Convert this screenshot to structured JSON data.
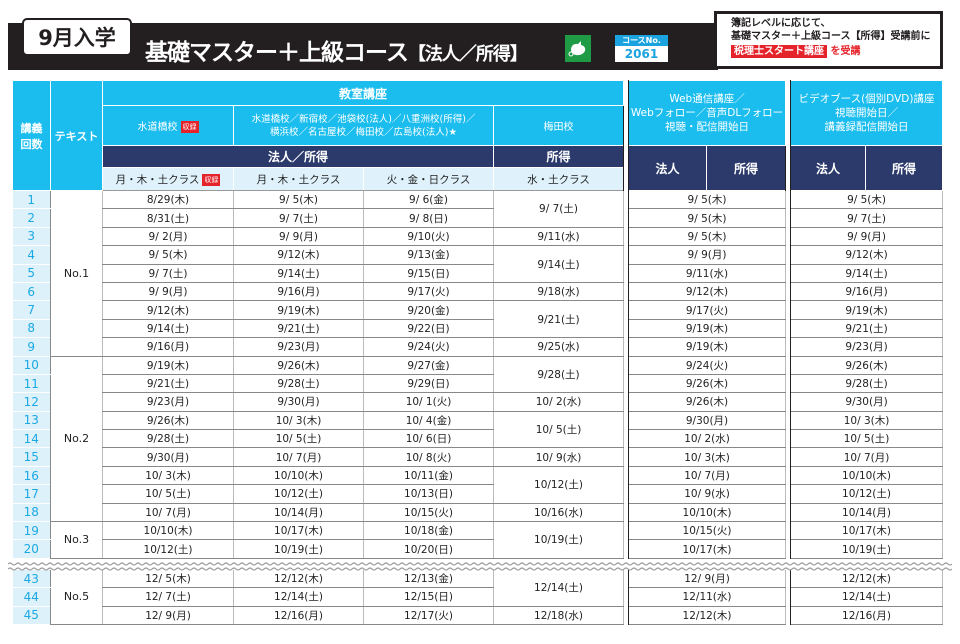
{
  "header": {
    "entry_label": "9月入学",
    "title": "基礎マスター＋上級コース",
    "title_sub": "【法人／所得】",
    "icon": "green-bird-icon",
    "course_no_label": "コースNo.",
    "course_no": "2061",
    "note_line1": "簿記レベルに応じて、",
    "note_line2": "基礎マスター＋上級コース【所得】受講前に",
    "note_highlight": "税理士スタート講座",
    "note_suffix": "を受講"
  },
  "colors": {
    "cyan": "#1bbdee",
    "navy": "#2b3a6b",
    "light": "#dff2fb",
    "red": "#e5232b"
  },
  "table": {
    "col_lecture_no": "講義\n回数",
    "col_text": "テキスト",
    "classroom": "教室講座",
    "school_1": "水道橋校",
    "school_1_badge": "収録",
    "school_2": "水道橋校／新宿校／池袋校(法人)／八重洲校(所得)／\n横浜校／名古屋校／梅田校／広島校(法人)★",
    "school_3": "梅田校",
    "subject_main": "法人／所得",
    "subject_umeda": "所得",
    "class_1": "月・木・土クラス",
    "class_1_badge": "収録",
    "class_2": "月・木・土クラス",
    "class_3": "火・金・日クラス",
    "class_4": "水・土クラス",
    "web_header": "Web通信講座／\nWebフォロー／音声DLフォロー\n視聴・配信開始日",
    "video_header": "ビデオブース(個別DVD)講座\n視聴開始日／\n講義録配信開始日",
    "web_corp": "法人",
    "web_income": "所得",
    "video_corp": "法人",
    "video_income": "所得"
  },
  "text_groups": [
    {
      "label": "No.1",
      "rows": 9
    },
    {
      "label": "No.2",
      "rows": 9
    },
    {
      "label": "No.3",
      "rows": 2
    },
    {
      "label": "No.5",
      "rows": 3
    }
  ],
  "rows": [
    {
      "n": "1",
      "c1": "8/29(木)",
      "c2": "9/ 5(木)",
      "c3": "9/ 6(金)",
      "c4": "9/ 7(土)",
      "c4_span": 2,
      "web": "9/ 5(木)",
      "video": "9/ 5(木)"
    },
    {
      "n": "2",
      "c1": "8/31(土)",
      "c2": "9/ 7(土)",
      "c3": "9/ 8(日)",
      "web": "9/ 5(木)",
      "video": "9/ 7(土)"
    },
    {
      "n": "3",
      "c1": "9/ 2(月)",
      "c2": "9/ 9(月)",
      "c3": "9/10(火)",
      "c4": "9/11(水)",
      "c4_span": 1,
      "web": "9/ 5(木)",
      "video": "9/ 9(月)"
    },
    {
      "n": "4",
      "c1": "9/ 5(木)",
      "c2": "9/12(木)",
      "c3": "9/13(金)",
      "c4": "9/14(土)",
      "c4_span": 2,
      "web": "9/ 9(月)",
      "video": "9/12(木)"
    },
    {
      "n": "5",
      "c1": "9/ 7(土)",
      "c2": "9/14(土)",
      "c3": "9/15(日)",
      "web": "9/11(水)",
      "video": "9/14(土)"
    },
    {
      "n": "6",
      "c1": "9/ 9(月)",
      "c2": "9/16(月)",
      "c3": "9/17(火)",
      "c4": "9/18(水)",
      "c4_span": 1,
      "web": "9/12(木)",
      "video": "9/16(月)"
    },
    {
      "n": "7",
      "c1": "9/12(木)",
      "c2": "9/19(木)",
      "c3": "9/20(金)",
      "c4": "9/21(土)",
      "c4_span": 2,
      "web": "9/17(火)",
      "video": "9/19(木)"
    },
    {
      "n": "8",
      "c1": "9/14(土)",
      "c2": "9/21(土)",
      "c3": "9/22(日)",
      "web": "9/19(木)",
      "video": "9/21(土)"
    },
    {
      "n": "9",
      "c1": "9/16(月)",
      "c2": "9/23(月)",
      "c3": "9/24(火)",
      "c4": "9/25(水)",
      "c4_span": 1,
      "web": "9/19(木)",
      "video": "9/23(月)"
    },
    {
      "n": "10",
      "c1": "9/19(木)",
      "c2": "9/26(木)",
      "c3": "9/27(金)",
      "c4": "9/28(土)",
      "c4_span": 2,
      "web": "9/24(火)",
      "video": "9/26(木)"
    },
    {
      "n": "11",
      "c1": "9/21(土)",
      "c2": "9/28(土)",
      "c3": "9/29(日)",
      "web": "9/26(木)",
      "video": "9/28(土)"
    },
    {
      "n": "12",
      "c1": "9/23(月)",
      "c2": "9/30(月)",
      "c3": "10/ 1(火)",
      "c4": "10/ 2(水)",
      "c4_span": 1,
      "web": "9/26(木)",
      "video": "9/30(月)"
    },
    {
      "n": "13",
      "c1": "9/26(木)",
      "c2": "10/ 3(木)",
      "c3": "10/ 4(金)",
      "c4": "10/ 5(土)",
      "c4_span": 2,
      "web": "9/30(月)",
      "video": "10/ 3(木)"
    },
    {
      "n": "14",
      "c1": "9/28(土)",
      "c2": "10/ 5(土)",
      "c3": "10/ 6(日)",
      "web": "10/ 2(水)",
      "video": "10/ 5(土)"
    },
    {
      "n": "15",
      "c1": "9/30(月)",
      "c2": "10/ 7(月)",
      "c3": "10/ 8(火)",
      "c4": "10/ 9(水)",
      "c4_span": 1,
      "web": "10/ 3(木)",
      "video": "10/ 7(月)"
    },
    {
      "n": "16",
      "c1": "10/ 3(木)",
      "c2": "10/10(木)",
      "c3": "10/11(金)",
      "c4": "10/12(土)",
      "c4_span": 2,
      "web": "10/ 7(月)",
      "video": "10/10(木)"
    },
    {
      "n": "17",
      "c1": "10/ 5(土)",
      "c2": "10/12(土)",
      "c3": "10/13(日)",
      "web": "10/ 9(水)",
      "video": "10/12(土)"
    },
    {
      "n": "18",
      "c1": "10/ 7(月)",
      "c2": "10/14(月)",
      "c3": "10/15(火)",
      "c4": "10/16(水)",
      "c4_span": 1,
      "web": "10/10(木)",
      "video": "10/14(月)"
    },
    {
      "n": "19",
      "c1": "10/10(木)",
      "c2": "10/17(木)",
      "c3": "10/18(金)",
      "c4": "10/19(土)",
      "c4_span": 2,
      "web": "10/15(火)",
      "video": "10/17(木)"
    },
    {
      "n": "20",
      "c1": "10/12(土)",
      "c2": "10/19(土)",
      "c3": "10/20(日)",
      "web": "10/17(木)",
      "video": "10/19(土)"
    },
    {
      "n": "43",
      "c1": "12/ 5(木)",
      "c2": "12/12(木)",
      "c3": "12/13(金)",
      "c4": "12/14(土)",
      "c4_span": 2,
      "web": "12/ 9(月)",
      "video": "12/12(木)"
    },
    {
      "n": "44",
      "c1": "12/ 7(土)",
      "c2": "12/14(土)",
      "c3": "12/15(日)",
      "web": "12/11(水)",
      "video": "12/14(土)"
    },
    {
      "n": "45",
      "c1": "12/ 9(月)",
      "c2": "12/16(月)",
      "c3": "12/17(火)",
      "c4": "12/18(水)",
      "c4_span": 1,
      "web": "12/12(木)",
      "video": "12/16(月)"
    }
  ]
}
